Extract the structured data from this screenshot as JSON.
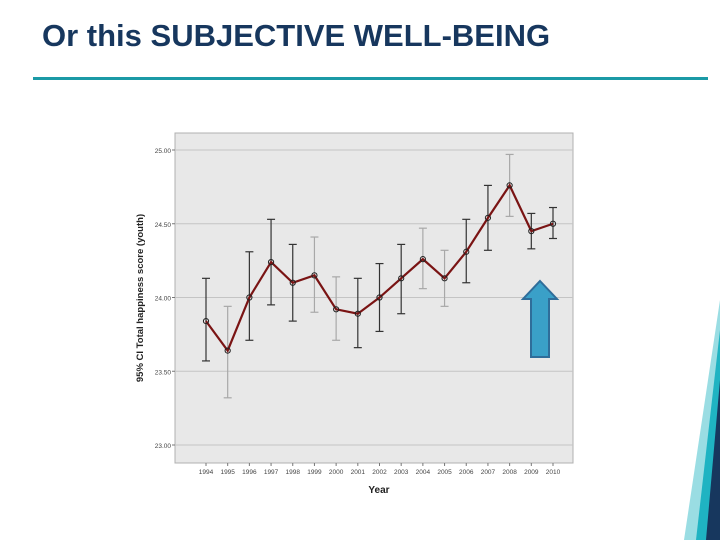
{
  "slide": {
    "title": "Or this SUBJECTIVE WELL-BEING"
  },
  "colors": {
    "title": "#17375e",
    "rule": "#1b9aa6",
    "plot_background": "#e8e8e8",
    "series_line": "#7a1414",
    "arrow_fill": "#3aa0c8",
    "arrow_stroke": "#2f6d9a",
    "deco_dark": "#17375e",
    "deco_teal": "#1fb3c2"
  },
  "icons": {
    "arrow": "up-arrow-icon"
  },
  "chart_data": {
    "type": "line",
    "title": "",
    "xlabel": "Year",
    "ylabel": "95% CI Total happiness score (youth)",
    "ylim": [
      23.0,
      25.0
    ],
    "yticks": [
      "23.00",
      "23.50",
      "24.00",
      "24.50",
      "25.00"
    ],
    "error_bars": true,
    "series": [
      {
        "name": "Total happiness score (youth)",
        "categories": [
          "1994",
          "1995",
          "1996",
          "1997",
          "1998",
          "1999",
          "2000",
          "2001",
          "2002",
          "2003",
          "2004",
          "2005",
          "2006",
          "2007",
          "2008",
          "2009",
          "2010"
        ],
        "values": [
          23.84,
          23.64,
          24.0,
          24.24,
          24.1,
          24.15,
          23.92,
          23.89,
          24.0,
          24.13,
          24.26,
          24.13,
          24.31,
          24.54,
          24.76,
          24.45,
          24.5
        ],
        "ci_low": [
          23.57,
          23.32,
          23.71,
          23.95,
          23.84,
          23.9,
          23.71,
          23.66,
          23.77,
          23.89,
          24.06,
          23.94,
          24.1,
          24.32,
          24.55,
          24.33,
          24.4
        ],
        "ci_high": [
          24.13,
          23.94,
          24.31,
          24.53,
          24.36,
          24.41,
          24.14,
          24.13,
          24.23,
          24.36,
          24.47,
          24.32,
          24.53,
          24.76,
          24.97,
          24.57,
          24.61
        ],
        "ci_dark": [
          true,
          false,
          true,
          true,
          true,
          false,
          false,
          true,
          true,
          true,
          false,
          false,
          true,
          true,
          false,
          true,
          true
        ]
      }
    ]
  }
}
